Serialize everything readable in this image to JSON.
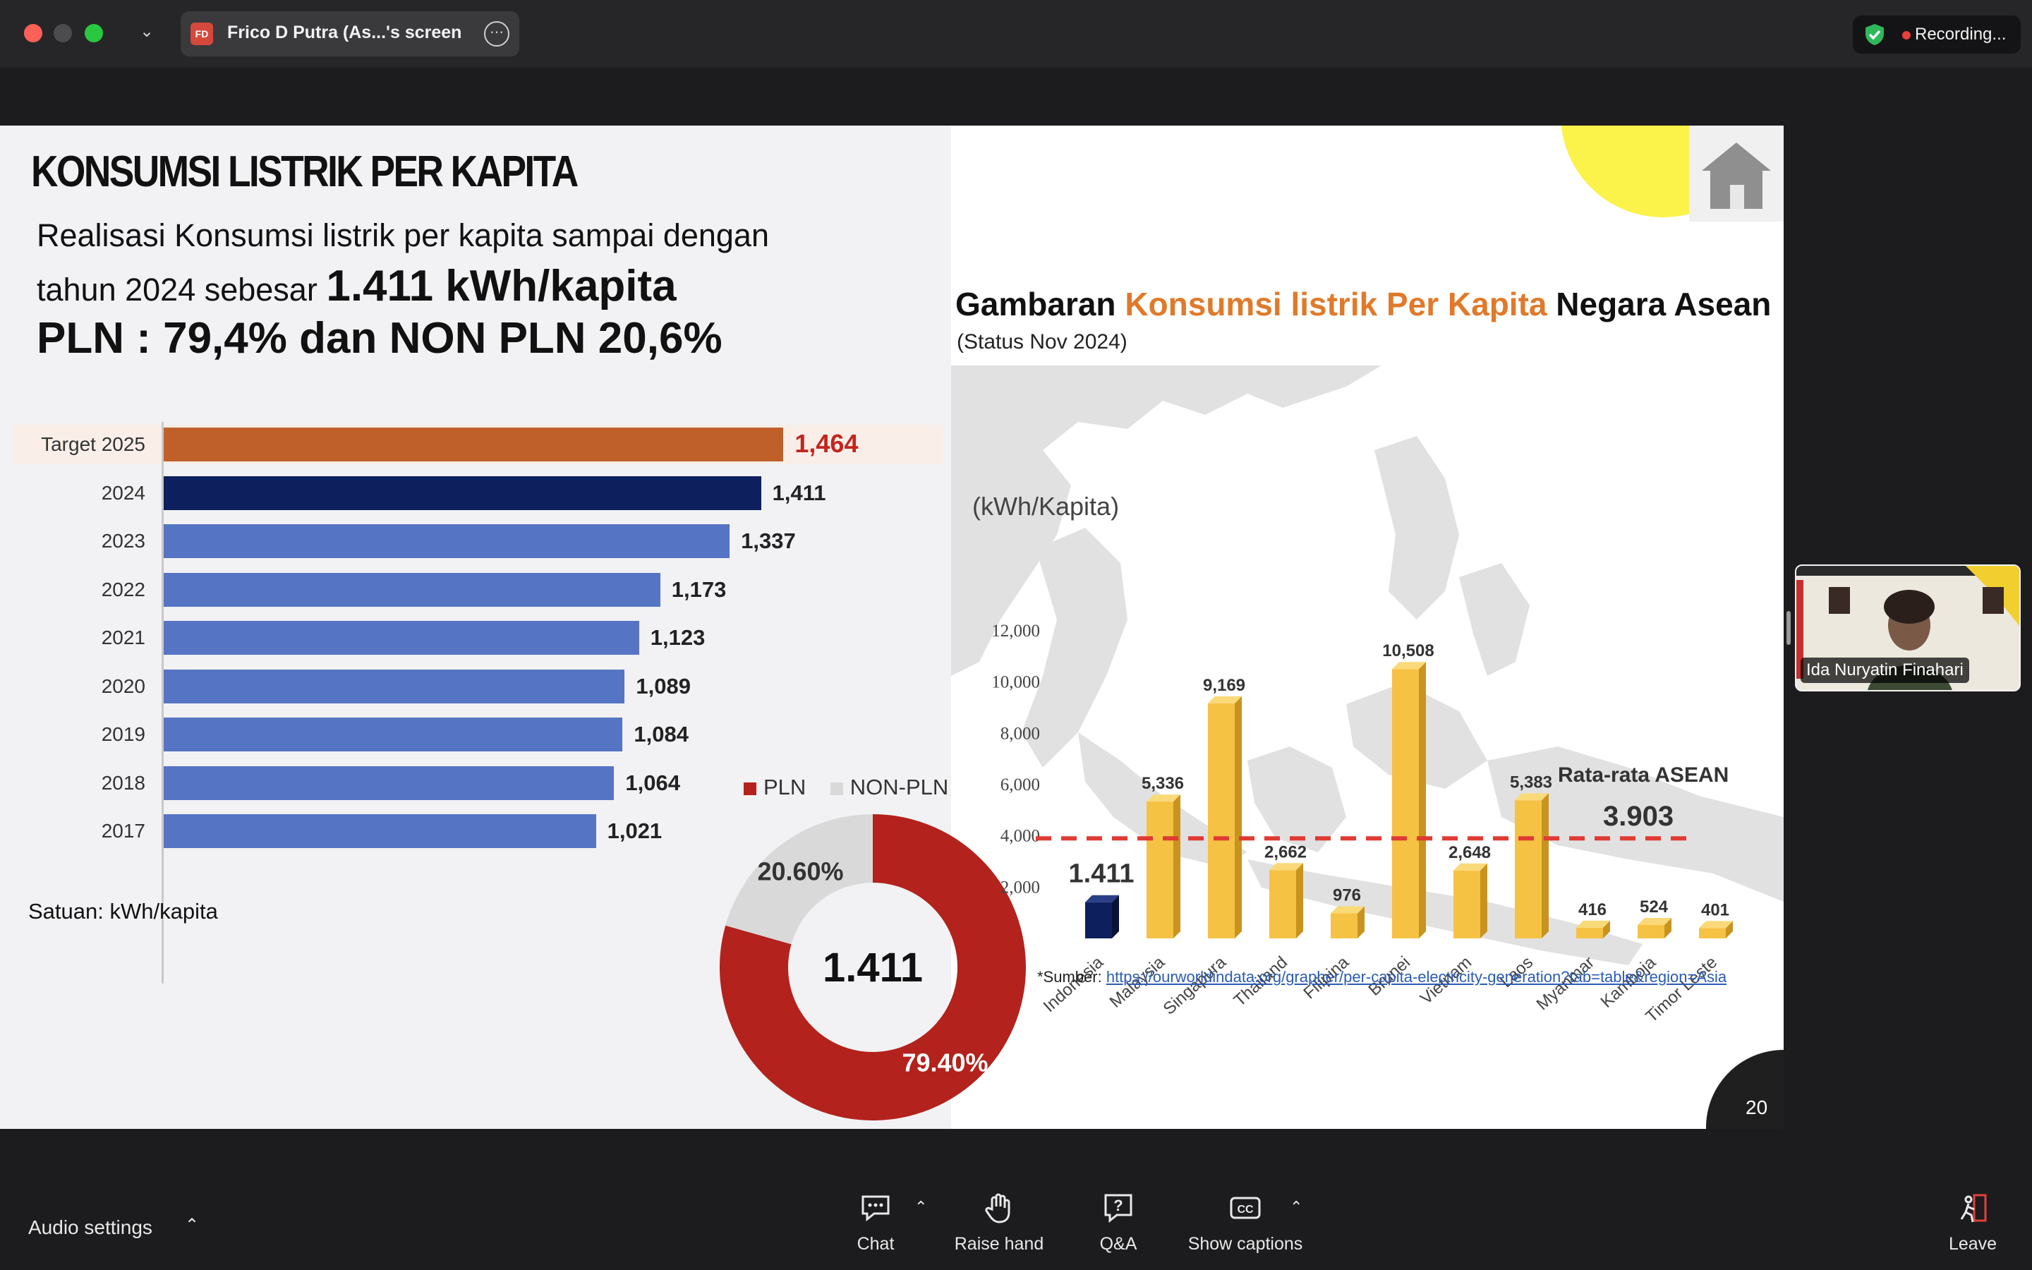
{
  "titlebar": {
    "share_initials": "FD",
    "share_label": "Frico D Putra (As...'s screen",
    "recording_label": "Recording..."
  },
  "slide": {
    "title": "KONSUMSI LISTRIK PER KAPITA",
    "subtitle_line1": "Realisasi Konsumsi listrik per kapita sampai dengan",
    "subtitle_line2_prefix": "tahun 2024 sebesar",
    "subtitle_line2_value": "1.411 kWh/kapita",
    "subtitle_line3": "PLN : 79,4% dan NON PLN 20,6%",
    "units_note": "Satuan: kWh/kapita",
    "page_number": "20",
    "source_prefix": "*Sumber: ",
    "source_link": "https://ourworldindata.org/grapher/per-capita-electricity-generation?tab=table&region=Asia",
    "asean_title_a": "Gambaran ",
    "asean_title_b": "Konsumsi listrik Per Kapita",
    "asean_title_c": " Negara Asean",
    "asean_status": "(Status Nov 2024)"
  },
  "chart_data": [
    {
      "type": "bar",
      "orientation": "horizontal",
      "categories": [
        "Target 2025",
        "2024",
        "2023",
        "2022",
        "2021",
        "2020",
        "2019",
        "2018",
        "2017"
      ],
      "values": [
        1464,
        1411,
        1337,
        1173,
        1123,
        1089,
        1084,
        1064,
        1021
      ],
      "value_labels": [
        "1,464",
        "1,411",
        "1,337",
        "1,173",
        "1,123",
        "1,089",
        "1,084",
        "1,064",
        "1,021"
      ],
      "colors": [
        "#bf5f2a",
        "#0d1f5c",
        "#5674c4",
        "#5674c4",
        "#5674c4",
        "#5674c4",
        "#5674c4",
        "#5674c4",
        "#5674c4"
      ],
      "xlim": [
        0,
        1600
      ]
    },
    {
      "type": "pie",
      "donut": true,
      "center_label": "1.411",
      "legend": [
        "PLN",
        "NON-PLN"
      ],
      "values": [
        79.4,
        20.6
      ],
      "value_labels": [
        "79.40%",
        "20.60%"
      ],
      "colors": [
        "#b3221c",
        "#d9d9d9"
      ]
    },
    {
      "type": "bar",
      "orientation": "vertical",
      "ylabel": "(kWh/Kapita)",
      "ylim": [
        0,
        12000
      ],
      "yticks": [
        "2,000",
        "4,000",
        "6,000",
        "8,000",
        "10,000",
        "12,000"
      ],
      "categories": [
        "Indonesia",
        "Malaysia",
        "Singapura",
        "Thailand",
        "Filipina",
        "Brunei",
        "Vietnam",
        "Laos",
        "Myanmar",
        "Kamboja",
        "Timor Leste"
      ],
      "values": [
        1411,
        5336,
        9169,
        2662,
        976,
        10508,
        2648,
        5383,
        416,
        524,
        401
      ],
      "value_labels": [
        "1.411",
        "5,336",
        "9,169",
        "2,662",
        "976",
        "10,508",
        "2,648",
        "5,383",
        "416",
        "524",
        "401"
      ],
      "colors": [
        "#0d1f5c",
        "#f6c244",
        "#f6c244",
        "#f6c244",
        "#f6c244",
        "#f6c244",
        "#f6c244",
        "#f6c244",
        "#f6c244",
        "#f6c244",
        "#f6c244"
      ],
      "reference_line": {
        "label": "Rata-rata ASEAN",
        "value_label": "3.903",
        "value": 3903,
        "color": "#e03a33"
      }
    }
  ],
  "participant": {
    "name": "Ida Nuryatin Finahari"
  },
  "toolbar": {
    "audio_settings": "Audio settings",
    "chat": "Chat",
    "raise_hand": "Raise hand",
    "qa": "Q&A",
    "captions": "Show captions",
    "leave": "Leave"
  },
  "colors": {
    "accent_orange": "#e07a2b",
    "recording_red": "#e5403a",
    "shield_green": "#2fb85a"
  }
}
